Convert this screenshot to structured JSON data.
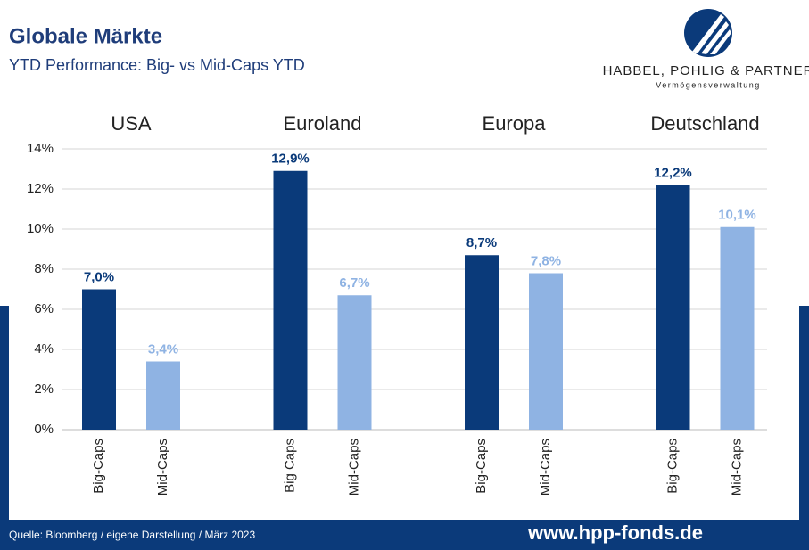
{
  "chart_data": {
    "type": "bar",
    "title": "Globale Märkte",
    "subtitle": "YTD Performance: Big- vs Mid-Caps YTD",
    "logo": {
      "name": "HABBEL, POHLIG & PARTNER",
      "tagline": "Vermögensverwaltung"
    },
    "source": "Quelle: Bloomberg / eigene Darstellung / März 2023",
    "website": "www.hpp-fonds.de",
    "colors": [
      "#0a3a7a",
      "#8fb3e3"
    ],
    "groups": [
      {
        "name": "USA",
        "categories": [
          "Big-Caps",
          "Mid-Caps"
        ],
        "values": [
          7.0,
          3.4
        ],
        "value_labels": [
          "7,0%",
          "3,4%"
        ]
      },
      {
        "name": "Euroland",
        "categories": [
          "Big Caps",
          "Mid-Caps"
        ],
        "values": [
          12.9,
          6.7
        ],
        "value_labels": [
          "12,9%",
          "6,7%"
        ]
      },
      {
        "name": "Europa",
        "categories": [
          "Big-Caps",
          "Mid-Caps"
        ],
        "values": [
          8.7,
          7.8
        ],
        "value_labels": [
          "8,7%",
          "7,8%"
        ]
      },
      {
        "name": "Deutschland",
        "categories": [
          "Big-Caps",
          "Mid-Caps"
        ],
        "values": [
          12.2,
          10.1
        ],
        "value_labels": [
          "12,2%",
          "10,1%"
        ]
      }
    ],
    "ylim": [
      0,
      14
    ],
    "yticks": [
      {
        "value": 0,
        "label": "0%"
      },
      {
        "value": 2,
        "label": "2%"
      },
      {
        "value": 4,
        "label": "4%"
      },
      {
        "value": 6,
        "label": "6%"
      },
      {
        "value": 8,
        "label": "8%"
      },
      {
        "value": 10,
        "label": "10%"
      },
      {
        "value": 12,
        "label": "12%"
      },
      {
        "value": 14,
        "label": "14%"
      }
    ],
    "grid": true
  }
}
